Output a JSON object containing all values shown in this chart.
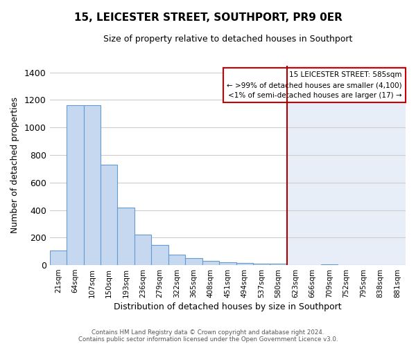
{
  "title": "15, LEICESTER STREET, SOUTHPORT, PR9 0ER",
  "subtitle": "Size of property relative to detached houses in Southport",
  "xlabel": "Distribution of detached houses by size in Southport",
  "ylabel": "Number of detached properties",
  "bar_labels": [
    "21sqm",
    "64sqm",
    "107sqm",
    "150sqm",
    "193sqm",
    "236sqm",
    "279sqm",
    "322sqm",
    "365sqm",
    "408sqm",
    "451sqm",
    "494sqm",
    "537sqm",
    "580sqm",
    "623sqm",
    "666sqm",
    "709sqm",
    "752sqm",
    "795sqm",
    "838sqm",
    "881sqm"
  ],
  "bar_values": [
    107,
    1160,
    1160,
    730,
    420,
    220,
    148,
    75,
    50,
    33,
    18,
    13,
    8,
    8,
    0,
    0,
    5,
    0,
    0,
    0,
    0
  ],
  "bar_color": "#c5d8f0",
  "bar_edge_color": "#6699cc",
  "vline_x_idx": 13.5,
  "vline_color": "#aa0000",
  "ylim": [
    0,
    1450
  ],
  "yticks": [
    0,
    200,
    400,
    600,
    800,
    1000,
    1200,
    1400
  ],
  "legend_title": "15 LEICESTER STREET: 585sqm",
  "legend_line1": "← >99% of detached houses are smaller (4,100)",
  "legend_line2": "<1% of semi-detached houses are larger (17) →",
  "legend_box_color": "white",
  "legend_box_edge": "#cc0000",
  "footer_line1": "Contains HM Land Registry data © Crown copyright and database right 2024.",
  "footer_line2": "Contains public sector information licensed under the Open Government Licence v3.0.",
  "bg_color_left": "#ffffff",
  "bg_color_right": "#e8eef8",
  "grid_color": "#cccccc",
  "title_fontsize": 11,
  "subtitle_fontsize": 9
}
